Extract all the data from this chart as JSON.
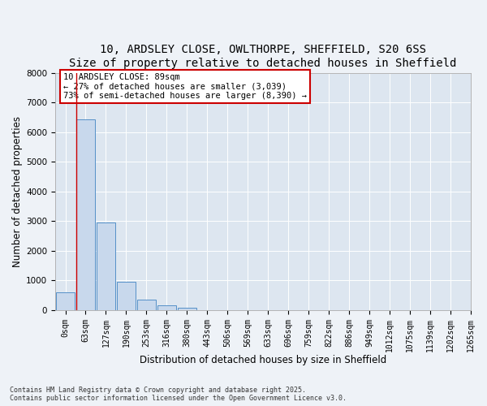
{
  "title_line1": "10, ARDSLEY CLOSE, OWLTHORPE, SHEFFIELD, S20 6SS",
  "title_line2": "Size of property relative to detached houses in Sheffield",
  "xlabel": "Distribution of detached houses by size in Sheffield",
  "ylabel": "Number of detached properties",
  "bar_values": [
    600,
    6450,
    2970,
    960,
    360,
    160,
    80,
    0,
    0,
    0,
    0,
    0,
    0,
    0,
    0,
    0,
    0,
    0,
    0,
    0
  ],
  "bar_labels": [
    "0sqm",
    "63sqm",
    "127sqm",
    "190sqm",
    "253sqm",
    "316sqm",
    "380sqm",
    "443sqm",
    "506sqm",
    "569sqm",
    "633sqm",
    "696sqm",
    "759sqm",
    "822sqm",
    "886sqm",
    "949sqm",
    "1012sqm",
    "1075sqm",
    "1139sqm",
    "1202sqm",
    "1265sqm"
  ],
  "bar_color": "#c8d8ec",
  "bar_edgecolor": "#5590c8",
  "vline_color": "#cc0000",
  "annotation_title": "10 ARDSLEY CLOSE: 89sqm",
  "annotation_line1": "← 27% of detached houses are smaller (3,039)",
  "annotation_line2": "73% of semi-detached houses are larger (8,390) →",
  "annotation_box_color": "#cc0000",
  "ylim_max": 8000,
  "yticks": [
    0,
    1000,
    2000,
    3000,
    4000,
    5000,
    6000,
    7000,
    8000
  ],
  "footnote1": "Contains HM Land Registry data © Crown copyright and database right 2025.",
  "footnote2": "Contains public sector information licensed under the Open Government Licence v3.0.",
  "bg_color": "#eef2f7",
  "plot_bg_color": "#dde6f0",
  "grid_color": "#ffffff",
  "title_fontsize": 10,
  "axis_label_fontsize": 8.5,
  "tick_fontsize": 7,
  "annotation_fontsize": 7.5,
  "footnote_fontsize": 6
}
